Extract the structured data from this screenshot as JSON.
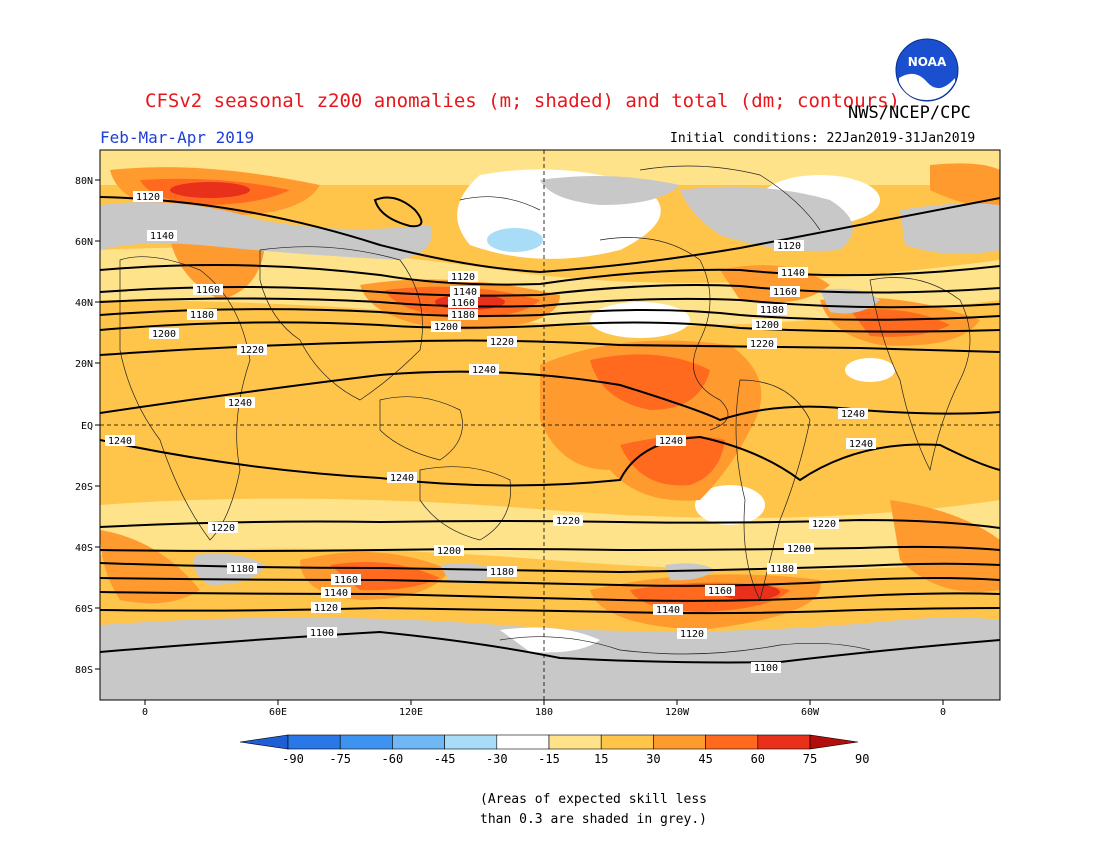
{
  "title": "CFSv2 seasonal z200 anomalies (m; shaded) and total (dm; contours)",
  "agency": "NWS/NCEP/CPC",
  "logo_text": "NOAA",
  "season": "Feb-Mar-Apr 2019",
  "initial_conditions": "Initial conditions: 22Jan2019-31Jan2019",
  "lat_labels": [
    "80N",
    "60N",
    "40N",
    "20N",
    "EQ",
    "20S",
    "40S",
    "60S",
    "80S"
  ],
  "lon_labels": [
    "0",
    "60E",
    "120E",
    "180",
    "120W",
    "60W",
    "0"
  ],
  "colorbar": {
    "ticks": [
      "-90",
      "-75",
      "-60",
      "-45",
      "-30",
      "-15",
      "15",
      "30",
      "45",
      "60",
      "75",
      "90"
    ],
    "colors": [
      "#1f5fd6",
      "#2a78e8",
      "#3f93f0",
      "#6fb7f5",
      "#a8dcf7",
      "#ffffff",
      "#ffe38a",
      "#ffc54a",
      "#ff9b2e",
      "#ff6a1f",
      "#e8301a",
      "#b30d0d"
    ]
  },
  "contour_labels": {
    "c1100": "1100",
    "c1120": "1120",
    "c1140": "1140",
    "c1160": "1160",
    "c1180": "1180",
    "c1200": "1200",
    "c1220": "1220",
    "c1240": "1240"
  },
  "note_line1": "(Areas of expected skill less",
  "note_line2": "than 0.3 are shaded in grey.)",
  "colors": {
    "grey_low_skill": "#c8c8c8",
    "title": "#e8151b",
    "season": "#1e3fd6"
  }
}
